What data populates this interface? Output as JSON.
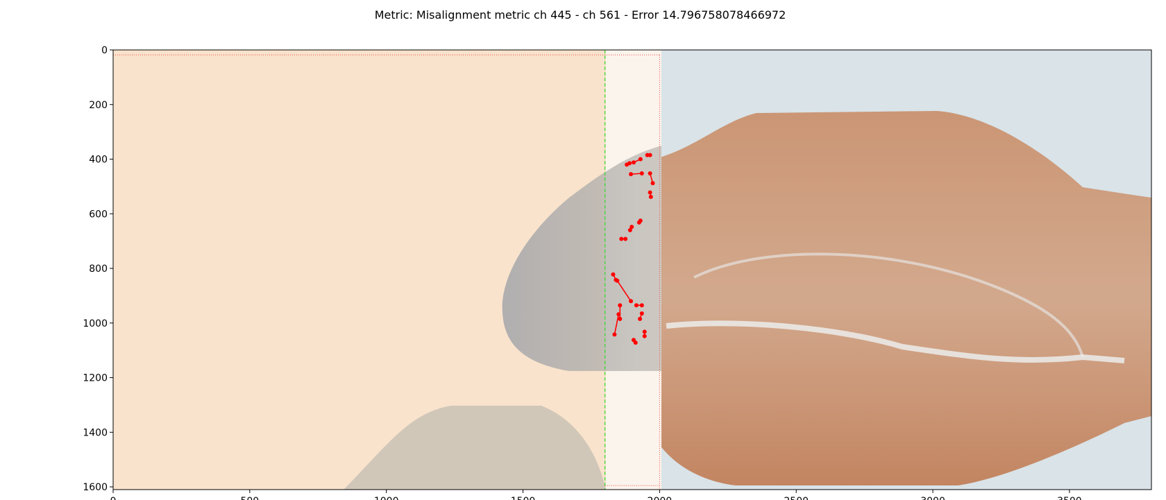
{
  "chart_data": {
    "type": "scatter",
    "title": "Metric: Misalignment metric ch 445 - ch 561 - Error 14.796758078466972",
    "xlabel": "",
    "ylabel": "",
    "xlim": [
      0,
      3800
    ],
    "ylim": [
      1610,
      0
    ],
    "x_ticks": [
      0,
      500,
      1000,
      1500,
      2000,
      2500,
      3000,
      3500
    ],
    "y_ticks": [
      0,
      200,
      400,
      600,
      800,
      1000,
      1200,
      1400,
      1600
    ],
    "grid": false,
    "colors": {
      "left_tile": "#f9e3cc",
      "overlap_tile": "#fbf4ec",
      "right_tile_bg": "#d9e3e8",
      "tissue_warm": "#c88860",
      "tissue_cool": "#a7a7a8",
      "marker": "#ff0000",
      "overlap_start_line": "#33dd33",
      "bounds_line": "#ee4444"
    },
    "overlap_region": {
      "x_start": 1800,
      "x_end": 2000,
      "y_start": 18,
      "y_end": 1595
    },
    "segments": [
      [
        [
          1880,
          420
        ],
        [
          1890,
          415
        ]
      ],
      [
        [
          1905,
          412
        ],
        [
          1930,
          400
        ]
      ],
      [
        [
          1955,
          385
        ],
        [
          1965,
          385
        ]
      ],
      [
        [
          1895,
          455
        ],
        [
          1935,
          452
        ]
      ],
      [
        [
          1965,
          452
        ],
        [
          1975,
          488
        ]
      ],
      [
        [
          1965,
          522
        ],
        [
          1968,
          538
        ]
      ],
      [
        [
          1892,
          660
        ],
        [
          1898,
          648
        ]
      ],
      [
        [
          1925,
          632
        ],
        [
          1930,
          625
        ]
      ],
      [
        [
          1860,
          692
        ],
        [
          1875,
          692
        ]
      ],
      [
        [
          1830,
          822
        ],
        [
          1840,
          842
        ]
      ],
      [
        [
          1845,
          845
        ],
        [
          1895,
          920
        ]
      ],
      [
        [
          1855,
          935
        ],
        [
          1855,
          985
        ]
      ],
      [
        [
          1850,
          968
        ],
        [
          1835,
          1042
        ]
      ],
      [
        [
          1915,
          935
        ],
        [
          1935,
          935
        ]
      ],
      [
        [
          1935,
          965
        ],
        [
          1928,
          985
        ]
      ],
      [
        [
          1945,
          1032
        ],
        [
          1945,
          1048
        ]
      ],
      [
        [
          1905,
          1062
        ],
        [
          1912,
          1072
        ]
      ]
    ]
  }
}
